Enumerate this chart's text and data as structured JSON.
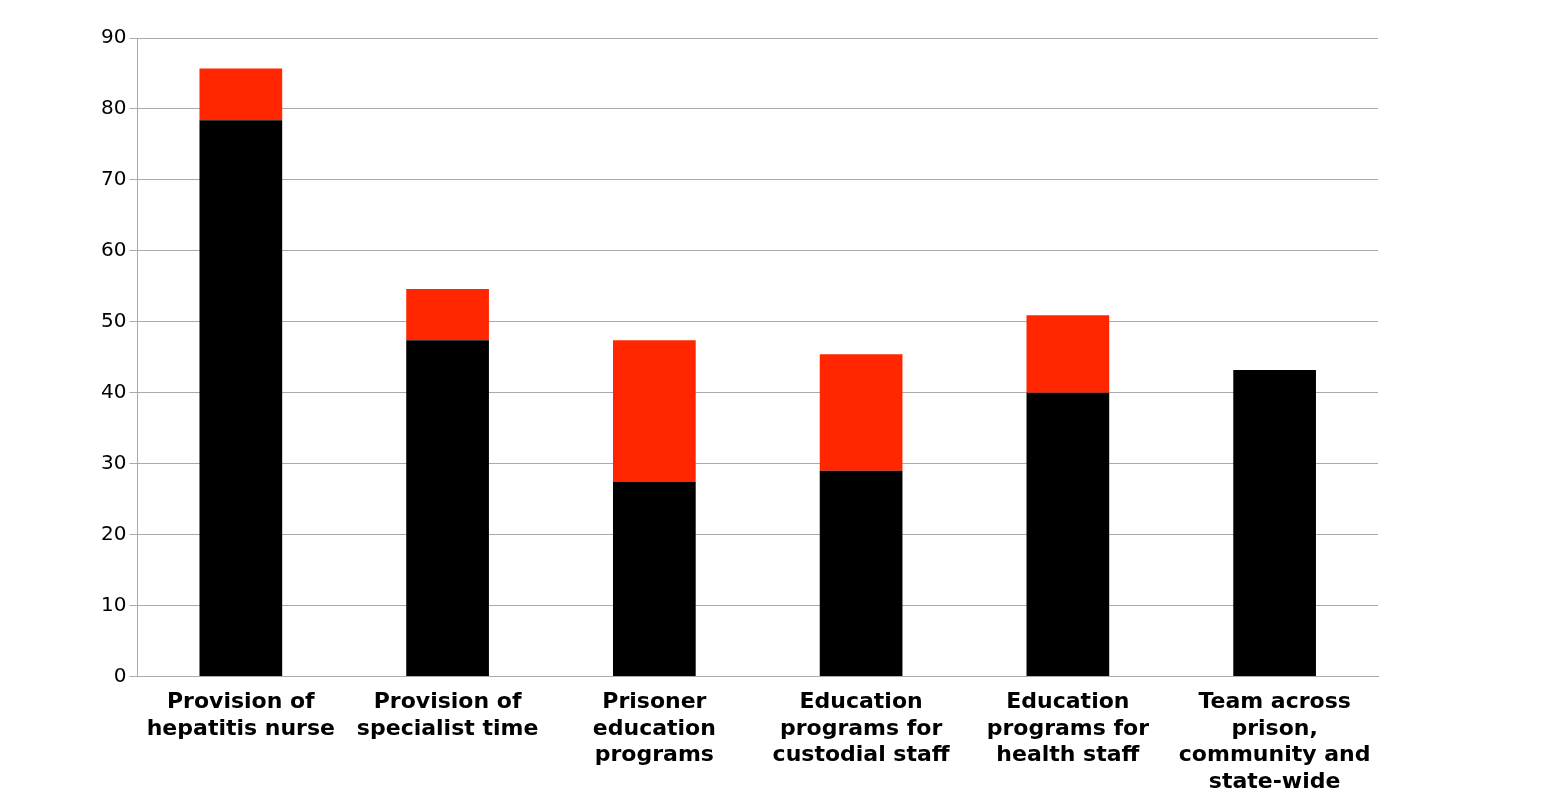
{
  "chart_data": {
    "type": "bar",
    "stacked": true,
    "categories": [
      "Provision of hepatitis nurse",
      "Provision of specialist time",
      "Prisoner education programs",
      "Education programs for custodial staff",
      "Education programs for health staff",
      "Team across prison, community and state-wide"
    ],
    "series": [
      {
        "color": "#000000",
        "values": [
          78.4,
          47.4,
          27.4,
          29.0,
          40.0,
          43.2
        ]
      },
      {
        "color": "#ff2600",
        "values": [
          7.3,
          7.2,
          20.0,
          16.4,
          10.9,
          null
        ]
      }
    ],
    "ylim": [
      0,
      90
    ],
    "yticks": [
      0,
      10,
      20,
      30,
      40,
      50,
      60,
      70,
      80,
      90
    ],
    "grid": "y",
    "legend": false
  }
}
